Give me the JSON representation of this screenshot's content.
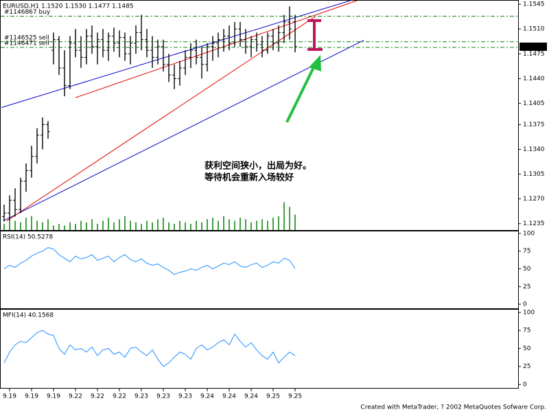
{
  "chart_data": [
    {
      "type": "ohlc",
      "title": "EURUSD,H1 1.1520 1.1530 1.1477 1.1485",
      "categories": [
        null,
        "9.19",
        null,
        null,
        null,
        "9.19",
        null,
        null,
        null,
        "9.19",
        null,
        null,
        null,
        "9.22",
        null,
        null,
        null,
        "9.22",
        null,
        null,
        null,
        "9.22",
        null,
        null,
        null,
        "9.23",
        null,
        null,
        null,
        "9.23",
        null,
        null,
        null,
        "9.23",
        null,
        null,
        null,
        "9.24",
        null,
        null,
        null,
        "9.24",
        null,
        null,
        null,
        "9.24",
        null,
        null,
        null,
        "9.25",
        null,
        null,
        null,
        "9.25"
      ],
      "open": [
        1.1245,
        1.125,
        1.1268,
        1.1255,
        1.1295,
        1.131,
        1.133,
        1.136,
        1.1375,
        1.148,
        1.1495,
        1.1455,
        1.143,
        1.149,
        1.148,
        1.147,
        1.15,
        1.1485,
        1.1495,
        1.148,
        1.15,
        1.149,
        1.1498,
        1.1475,
        1.149,
        1.1505,
        1.1495,
        1.148,
        1.147,
        1.1485,
        1.146,
        1.1445,
        1.144,
        1.1455,
        1.147,
        1.148,
        1.147,
        1.146,
        1.1485,
        1.149,
        1.1495,
        1.15,
        1.149,
        1.151,
        1.1495,
        1.1485,
        1.1495,
        1.1488,
        1.148,
        1.15,
        1.149,
        1.1505,
        1.152,
        1.152
      ],
      "high": [
        1.1262,
        1.1275,
        1.1285,
        1.13,
        1.132,
        1.1345,
        1.137,
        1.1385,
        1.138,
        1.1505,
        1.15,
        1.148,
        1.15,
        1.151,
        1.15,
        1.151,
        1.1515,
        1.1505,
        1.151,
        1.1505,
        1.1512,
        1.1508,
        1.1505,
        1.15,
        1.1515,
        1.153,
        1.151,
        1.15,
        1.1495,
        1.1495,
        1.1475,
        1.146,
        1.1465,
        1.148,
        1.149,
        1.1495,
        1.1485,
        1.149,
        1.15,
        1.1505,
        1.151,
        1.1515,
        1.152,
        1.152,
        1.151,
        1.15,
        1.1505,
        1.15,
        1.1505,
        1.151,
        1.1515,
        1.153,
        1.1542,
        1.153
      ],
      "low": [
        1.1238,
        1.124,
        1.1245,
        1.125,
        1.128,
        1.13,
        1.132,
        1.134,
        1.1355,
        1.146,
        1.1445,
        1.1415,
        1.1425,
        1.147,
        1.1455,
        1.146,
        1.1475,
        1.146,
        1.147,
        1.1465,
        1.1478,
        1.147,
        1.1465,
        1.146,
        1.1475,
        1.148,
        1.147,
        1.1455,
        1.146,
        1.145,
        1.1435,
        1.1425,
        1.143,
        1.1445,
        1.1455,
        1.146,
        1.144,
        1.145,
        1.1465,
        1.147,
        1.1478,
        1.148,
        1.1485,
        1.1485,
        1.1475,
        1.147,
        1.1478,
        1.147,
        1.1475,
        1.148,
        1.1478,
        1.149,
        1.1495,
        1.1477
      ],
      "close": [
        1.125,
        1.1268,
        1.1255,
        1.1295,
        1.131,
        1.133,
        1.136,
        1.1375,
        1.1365,
        1.1495,
        1.1455,
        1.143,
        1.149,
        1.148,
        1.147,
        1.15,
        1.1485,
        1.1495,
        1.148,
        1.15,
        1.149,
        1.1498,
        1.1475,
        1.149,
        1.1505,
        1.1495,
        1.148,
        1.147,
        1.1485,
        1.146,
        1.1445,
        1.144,
        1.1455,
        1.147,
        1.148,
        1.147,
        1.146,
        1.1485,
        1.149,
        1.1495,
        1.15,
        1.149,
        1.151,
        1.1495,
        1.1485,
        1.1495,
        1.1488,
        1.148,
        1.15,
        1.149,
        1.1505,
        1.152,
        1.151,
        1.1485
      ],
      "color": "#000000",
      "volume": {
        "values": [
          20,
          35,
          30,
          25,
          40,
          45,
          30,
          25,
          35,
          15,
          20,
          15,
          25,
          20,
          30,
          25,
          35,
          20,
          30,
          40,
          25,
          35,
          45,
          30,
          25,
          20,
          30,
          25,
          35,
          40,
          25,
          20,
          30,
          25,
          20,
          30,
          25,
          35,
          40,
          30,
          45,
          35,
          30,
          40,
          35,
          25,
          30,
          35,
          30,
          40,
          45,
          90,
          75,
          50
        ],
        "ylim": [
          0,
          100
        ],
        "color": "#008000"
      },
      "ylim": [
        1.1226,
        1.155
      ],
      "yticks": [
        1.1545,
        {
          "value": 1.151,
          "label": "1.1510"
        },
        1.1475,
        {
          "value": 1.144,
          "label": "1.1440"
        },
        1.1405,
        1.1375,
        {
          "value": 1.134,
          "label": "1.1340"
        },
        1.1305,
        {
          "value": 1.127,
          "label": "1.1270"
        },
        1.1235
      ],
      "orders": [
        {
          "name": "#1146867 buy",
          "value": 1.1528
        },
        {
          "name": "#1146525 sell",
          "value": 1.1492
        },
        {
          "name": "#1146471 sell",
          "value": 1.1484
        }
      ],
      "order_color": "#008000",
      "trendlines": [
        {
          "color": "#0000cc",
          "x": [
            -0.5,
            63
          ],
          "y": [
            1.1399,
            1.155
          ]
        },
        {
          "color": "#0000cc",
          "x": [
            -0.125,
            65.5
          ],
          "y": [
            1.1239,
            1.1494
          ]
        },
        {
          "color": "#e00000",
          "x": [
            13,
            64.25
          ],
          "y": [
            1.1413,
            1.155
          ]
        },
        {
          "color": "#e00000",
          "x": [
            0.5,
            56.75
          ],
          "y": [
            1.1239,
            1.1528
          ]
        }
      ],
      "current_price": {
        "value": 1.1485,
        "label": "1.1485"
      }
    },
    {
      "type": "line",
      "title": "RSI(14) 50.5278",
      "color": "#1e90ff",
      "values": [
        50,
        55,
        52,
        58,
        62,
        68,
        72,
        75,
        80,
        78,
        70,
        65,
        60,
        68,
        64,
        66,
        70,
        62,
        65,
        68,
        60,
        66,
        70,
        63,
        60,
        64,
        58,
        55,
        57,
        52,
        48,
        42,
        45,
        47,
        50,
        48,
        52,
        55,
        50,
        54,
        58,
        56,
        60,
        54,
        52,
        56,
        58,
        52,
        55,
        60,
        58,
        65,
        62,
        50.5278
      ],
      "ylim": [
        -5.8,
        102.9
      ],
      "yticks": [
        100,
        75,
        50,
        25,
        0
      ]
    },
    {
      "type": "line",
      "title": "MFI(14) 40.1568",
      "color": "#1e90ff",
      "values": [
        30,
        45,
        55,
        60,
        58,
        65,
        72,
        75,
        70,
        68,
        50,
        42,
        55,
        48,
        50,
        45,
        52,
        40,
        48,
        50,
        42,
        45,
        38,
        50,
        52,
        45,
        40,
        48,
        35,
        25,
        30,
        38,
        45,
        42,
        35,
        50,
        55,
        48,
        52,
        58,
        62,
        55,
        70,
        60,
        52,
        58,
        48,
        40,
        35,
        45,
        30,
        38,
        45,
        40.1568
      ],
      "ylim": [
        -4.8,
        103.8
      ],
      "yticks": [
        100,
        75,
        50,
        25,
        0
      ]
    }
  ],
  "annotation": {
    "lines": [
      "获利空间狭小，出局为好。",
      "等待机会重新入场较好"
    ],
    "color": "#008000"
  },
  "footer": "Created with MetaTrader, ? 2002 MetaQuotes Sofware Corp."
}
